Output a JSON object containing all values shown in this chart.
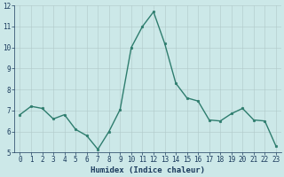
{
  "x": [
    0,
    1,
    2,
    3,
    4,
    5,
    6,
    7,
    8,
    9,
    10,
    11,
    12,
    13,
    14,
    15,
    16,
    17,
    18,
    19,
    20,
    21,
    22,
    23
  ],
  "y": [
    6.8,
    7.2,
    7.1,
    6.6,
    6.8,
    6.1,
    5.8,
    5.15,
    6.0,
    7.05,
    10.0,
    11.0,
    11.7,
    10.2,
    8.3,
    7.6,
    7.45,
    6.55,
    6.5,
    6.85,
    7.1,
    6.55,
    6.5,
    5.3
  ],
  "line_color": "#2e7d6e",
  "marker": "o",
  "marker_size": 1.8,
  "linewidth": 1.0,
  "bg_color": "#cce8e8",
  "grid_color": "#b0c8c8",
  "xlabel": "Humidex (Indice chaleur)",
  "xlabel_fontsize": 6.5,
  "xlabel_color": "#1a3a5c",
  "tick_fontsize": 5.5,
  "tick_color": "#1a3a5c",
  "ylim": [
    5,
    12
  ],
  "xlim": [
    -0.5,
    23.5
  ],
  "yticks": [
    5,
    6,
    7,
    8,
    9,
    10,
    11,
    12
  ],
  "xticks": [
    0,
    1,
    2,
    3,
    4,
    5,
    6,
    7,
    8,
    9,
    10,
    11,
    12,
    13,
    14,
    15,
    16,
    17,
    18,
    19,
    20,
    21,
    22,
    23
  ]
}
